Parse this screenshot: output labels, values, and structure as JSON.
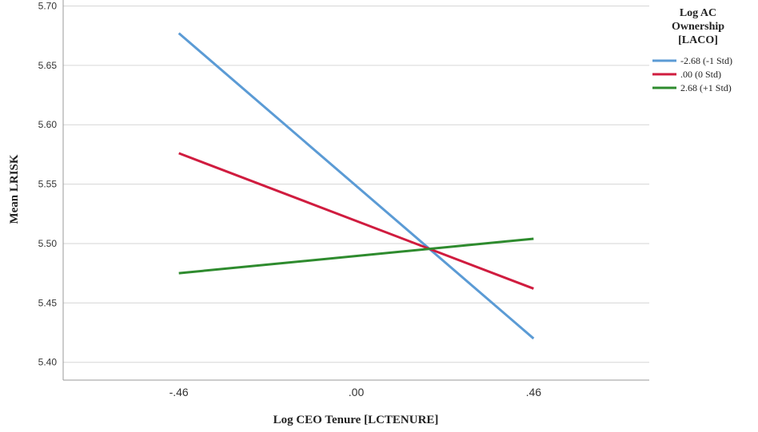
{
  "chart_data": {
    "type": "line",
    "xlabel": "Log CEO Tenure [LCTENURE]",
    "ylabel": "Mean LRISK",
    "x": [
      -0.46,
      0.46
    ],
    "x_tick_labels": [
      "-.46",
      ".00",
      ".46"
    ],
    "x_ticks": [
      -0.46,
      0.0,
      0.46
    ],
    "xlim": [
      -0.76,
      0.76
    ],
    "ylim": [
      5.385,
      5.705
    ],
    "y_ticks": [
      5.4,
      5.45,
      5.5,
      5.55,
      5.6,
      5.65,
      5.7
    ],
    "y_tick_labels": [
      "5.40",
      "5.45",
      "5.50",
      "5.55",
      "5.60",
      "5.65",
      "5.70"
    ],
    "grid": "horizontal",
    "legend": {
      "title_lines": [
        "Log AC",
        "Ownership",
        "[LACO]"
      ],
      "placement": "right"
    },
    "series": [
      {
        "name": "-2.68 (-1 Std)",
        "color": "#5b9bd5",
        "values": [
          5.677,
          5.42
        ]
      },
      {
        "name": ".00 (0 Std)",
        "color": "#d01c3f",
        "values": [
          5.576,
          5.462
        ]
      },
      {
        "name": "2.68 (+1 Std)",
        "color": "#2e8b2e",
        "values": [
          5.475,
          5.504
        ]
      }
    ]
  }
}
